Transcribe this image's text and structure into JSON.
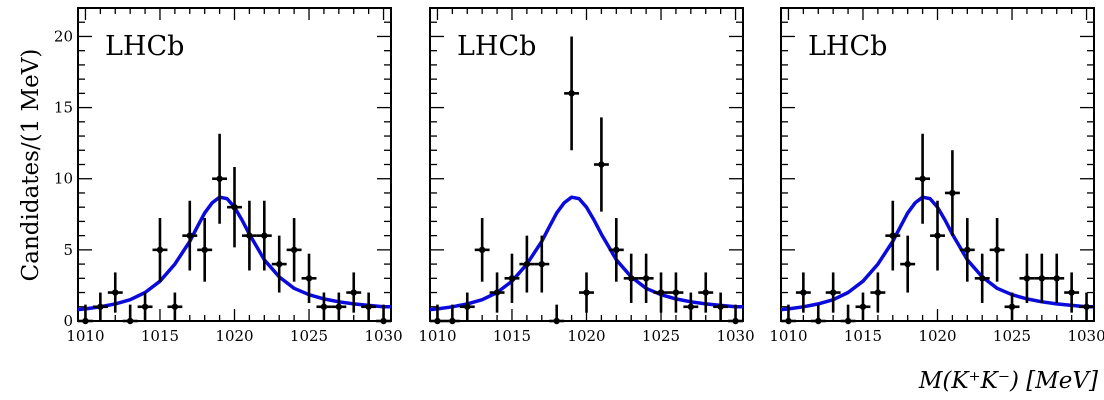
{
  "figure": {
    "ylabel": "Candidates/(1 MeV)",
    "xlabel": "M(K⁺K⁻) [MeV]"
  },
  "colors": {
    "fit": "#0a0adc",
    "data": "#000000",
    "frame": "#000000"
  },
  "chart_data": [
    {
      "type": "scatter",
      "annotation": "LHCb",
      "x_range": [
        1009.5,
        1030.5
      ],
      "y_range": [
        0,
        22
      ],
      "x_ticks": [
        1010,
        1015,
        1020,
        1025,
        1030
      ],
      "y_ticks": [
        0,
        5,
        10,
        15,
        20
      ],
      "series": [
        {
          "kind": "points-with-errors",
          "x": [
            1010,
            1011,
            1012,
            1013,
            1014,
            1015,
            1016,
            1017,
            1018,
            1019,
            1020,
            1021,
            1022,
            1023,
            1024,
            1025,
            1026,
            1027,
            1028,
            1029,
            1030
          ],
          "y": [
            0,
            1,
            2,
            0,
            1,
            5,
            1,
            6,
            5,
            10,
            8,
            6,
            6,
            4,
            5,
            3,
            1,
            1,
            2,
            1,
            0
          ]
        },
        {
          "kind": "fit-curve",
          "x": [
            1009.5,
            1010,
            1011,
            1012,
            1013,
            1014,
            1015,
            1016,
            1017,
            1017.5,
            1018,
            1018.5,
            1019,
            1019.5,
            1020,
            1020.5,
            1021,
            1021.5,
            1022,
            1023,
            1024,
            1025,
            1026,
            1027,
            1028,
            1029,
            1030,
            1030.5
          ],
          "y": [
            0.8,
            0.85,
            1.0,
            1.2,
            1.5,
            2.0,
            2.8,
            4.0,
            5.6,
            6.6,
            7.6,
            8.3,
            8.7,
            8.6,
            8.0,
            7.1,
            6.1,
            5.2,
            4.3,
            3.1,
            2.3,
            1.85,
            1.55,
            1.35,
            1.2,
            1.1,
            1.0,
            1.0
          ]
        }
      ]
    },
    {
      "type": "scatter",
      "annotation": "LHCb",
      "x_range": [
        1009.5,
        1030.5
      ],
      "y_range": [
        0,
        22
      ],
      "x_ticks": [
        1010,
        1015,
        1020,
        1025,
        1030
      ],
      "y_ticks": [
        0,
        5,
        10,
        15,
        20
      ],
      "series": [
        {
          "kind": "points-with-errors",
          "x": [
            1010,
            1011,
            1012,
            1013,
            1014,
            1015,
            1016,
            1017,
            1018,
            1019,
            1020,
            1021,
            1022,
            1023,
            1024,
            1025,
            1026,
            1027,
            1028,
            1029,
            1030
          ],
          "y": [
            0,
            0,
            1,
            5,
            2,
            3,
            4,
            4,
            0,
            16,
            2,
            11,
            5,
            3,
            3,
            2,
            2,
            1,
            2,
            1,
            0
          ]
        },
        {
          "kind": "fit-curve",
          "x": [
            1009.5,
            1010,
            1011,
            1012,
            1013,
            1014,
            1015,
            1016,
            1017,
            1017.5,
            1018,
            1018.5,
            1019,
            1019.5,
            1020,
            1020.5,
            1021,
            1021.5,
            1022,
            1023,
            1024,
            1025,
            1026,
            1027,
            1028,
            1029,
            1030,
            1030.5
          ],
          "y": [
            0.8,
            0.85,
            1.0,
            1.2,
            1.5,
            2.0,
            2.8,
            4.0,
            5.6,
            6.6,
            7.6,
            8.3,
            8.7,
            8.6,
            8.0,
            7.1,
            6.1,
            5.2,
            4.3,
            3.1,
            2.3,
            1.85,
            1.55,
            1.35,
            1.2,
            1.1,
            1.0,
            1.0
          ]
        }
      ]
    },
    {
      "type": "scatter",
      "annotation": "LHCb",
      "x_range": [
        1009.5,
        1030.5
      ],
      "y_range": [
        0,
        22
      ],
      "x_ticks": [
        1010,
        1015,
        1020,
        1025,
        1030
      ],
      "y_ticks": [
        0,
        5,
        10,
        15,
        20
      ],
      "series": [
        {
          "kind": "points-with-errors",
          "x": [
            1010,
            1011,
            1012,
            1013,
            1014,
            1015,
            1016,
            1017,
            1018,
            1019,
            1020,
            1021,
            1022,
            1023,
            1024,
            1025,
            1026,
            1027,
            1028,
            1029,
            1030
          ],
          "y": [
            0,
            2,
            0,
            2,
            0,
            1,
            2,
            6,
            4,
            10,
            6,
            9,
            5,
            3,
            5,
            1,
            3,
            3,
            3,
            2,
            1
          ]
        },
        {
          "kind": "fit-curve",
          "x": [
            1009.5,
            1010,
            1011,
            1012,
            1013,
            1014,
            1015,
            1016,
            1017,
            1017.5,
            1018,
            1018.5,
            1019,
            1019.5,
            1020,
            1020.5,
            1021,
            1021.5,
            1022,
            1023,
            1024,
            1025,
            1026,
            1027,
            1028,
            1029,
            1030,
            1030.5
          ],
          "y": [
            0.8,
            0.85,
            1.0,
            1.2,
            1.5,
            2.0,
            2.8,
            4.0,
            5.6,
            6.6,
            7.6,
            8.3,
            8.7,
            8.6,
            8.0,
            7.1,
            6.1,
            5.2,
            4.3,
            3.1,
            2.3,
            1.85,
            1.55,
            1.35,
            1.2,
            1.1,
            1.0,
            1.0
          ]
        }
      ]
    }
  ]
}
